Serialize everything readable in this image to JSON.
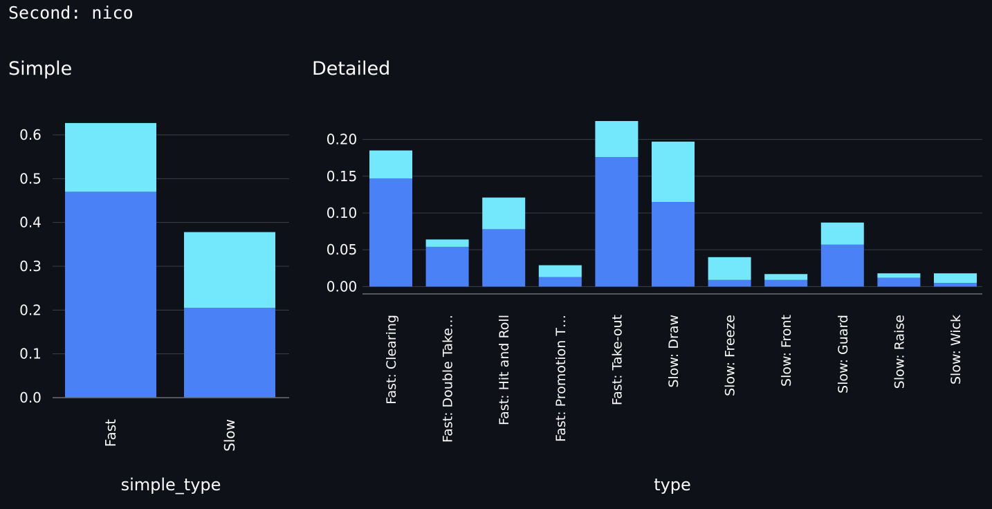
{
  "header": {
    "text": "Second: nico"
  },
  "charts": {
    "simple_title": "Simple",
    "detailed_title": "Detailed"
  },
  "colors": {
    "background": "#0e1117",
    "series_primary": "#4a81f6",
    "series_secondary": "#73e8fd",
    "grid": "#3b3f46",
    "text": "#fafafa"
  },
  "chart_data": [
    {
      "type": "bar",
      "stacked": true,
      "title": "Simple",
      "xlabel": "simple_type",
      "ylabel": "",
      "categories": [
        "Fast",
        "Slow"
      ],
      "series": [
        {
          "values": [
            0.47,
            0.205
          ]
        },
        {
          "values": [
            0.157,
            0.173
          ]
        }
      ],
      "ylim": [
        0,
        0.63
      ],
      "yticks": [
        0.0,
        0.1,
        0.2,
        0.3,
        0.4,
        0.5,
        0.6
      ],
      "ytick_labels": [
        "0.0",
        "0.1",
        "0.2",
        "0.3",
        "0.4",
        "0.5",
        "0.6"
      ],
      "grid": true,
      "legend": "none"
    },
    {
      "type": "bar",
      "stacked": true,
      "title": "Detailed",
      "xlabel": "type",
      "ylabel": "",
      "categories": [
        "Fast: Clearing",
        "Fast: Double Take…",
        "Fast: Hit and Roll",
        "Fast: Promotion T…",
        "Fast: Take-out",
        "Slow: Draw",
        "Slow: Freeze",
        "Slow: Front",
        "Slow: Guard",
        "Slow: Raise",
        "Slow: Wick"
      ],
      "series": [
        {
          "values": [
            0.147,
            0.054,
            0.078,
            0.013,
            0.176,
            0.115,
            0.009,
            0.009,
            0.057,
            0.012,
            0.005
          ]
        },
        {
          "values": [
            0.038,
            0.01,
            0.043,
            0.016,
            0.049,
            0.082,
            0.031,
            0.008,
            0.03,
            0.006,
            0.013
          ]
        }
      ],
      "ylim": [
        -0.01,
        0.225
      ],
      "yticks": [
        0.0,
        0.05,
        0.1,
        0.15,
        0.2
      ],
      "ytick_labels": [
        "0.00",
        "0.05",
        "0.10",
        "0.15",
        "0.20"
      ],
      "grid": true,
      "legend": "none"
    }
  ]
}
